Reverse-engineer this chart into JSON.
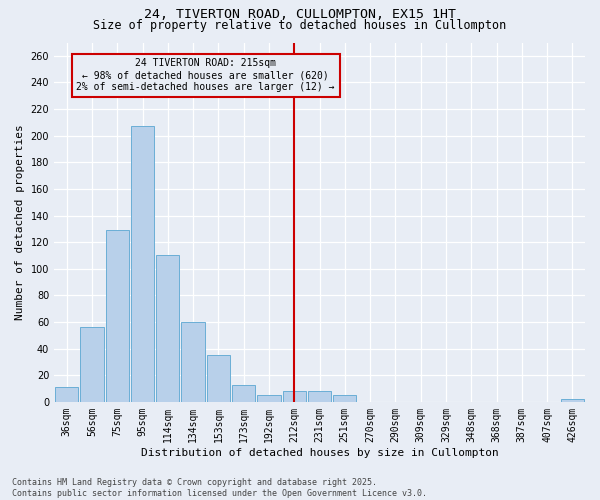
{
  "title_line1": "24, TIVERTON ROAD, CULLOMPTON, EX15 1HT",
  "title_line2": "Size of property relative to detached houses in Cullompton",
  "xlabel": "Distribution of detached houses by size in Cullompton",
  "ylabel": "Number of detached properties",
  "categories": [
    "36sqm",
    "56sqm",
    "75sqm",
    "95sqm",
    "114sqm",
    "134sqm",
    "153sqm",
    "173sqm",
    "192sqm",
    "212sqm",
    "231sqm",
    "251sqm",
    "270sqm",
    "290sqm",
    "309sqm",
    "329sqm",
    "348sqm",
    "368sqm",
    "387sqm",
    "407sqm",
    "426sqm"
  ],
  "values": [
    11,
    56,
    129,
    207,
    110,
    60,
    35,
    13,
    5,
    8,
    8,
    5,
    0,
    0,
    0,
    0,
    0,
    0,
    0,
    0,
    2
  ],
  "bar_color": "#b8d0ea",
  "bar_edge_color": "#6aaed6",
  "ylim": [
    0,
    270
  ],
  "yticks": [
    0,
    20,
    40,
    60,
    80,
    100,
    120,
    140,
    160,
    180,
    200,
    220,
    240,
    260
  ],
  "vline_color": "#cc0000",
  "annotation_text": "24 TIVERTON ROAD: 215sqm\n← 98% of detached houses are smaller (620)\n2% of semi-detached houses are larger (12) →",
  "annotation_box_color": "#cc0000",
  "background_color": "#e8edf5",
  "footnote": "Contains HM Land Registry data © Crown copyright and database right 2025.\nContains public sector information licensed under the Open Government Licence v3.0.",
  "title_fontsize": 9.5,
  "subtitle_fontsize": 8.5,
  "tick_fontsize": 7,
  "label_fontsize": 8,
  "footnote_fontsize": 6,
  "annot_fontsize": 7
}
